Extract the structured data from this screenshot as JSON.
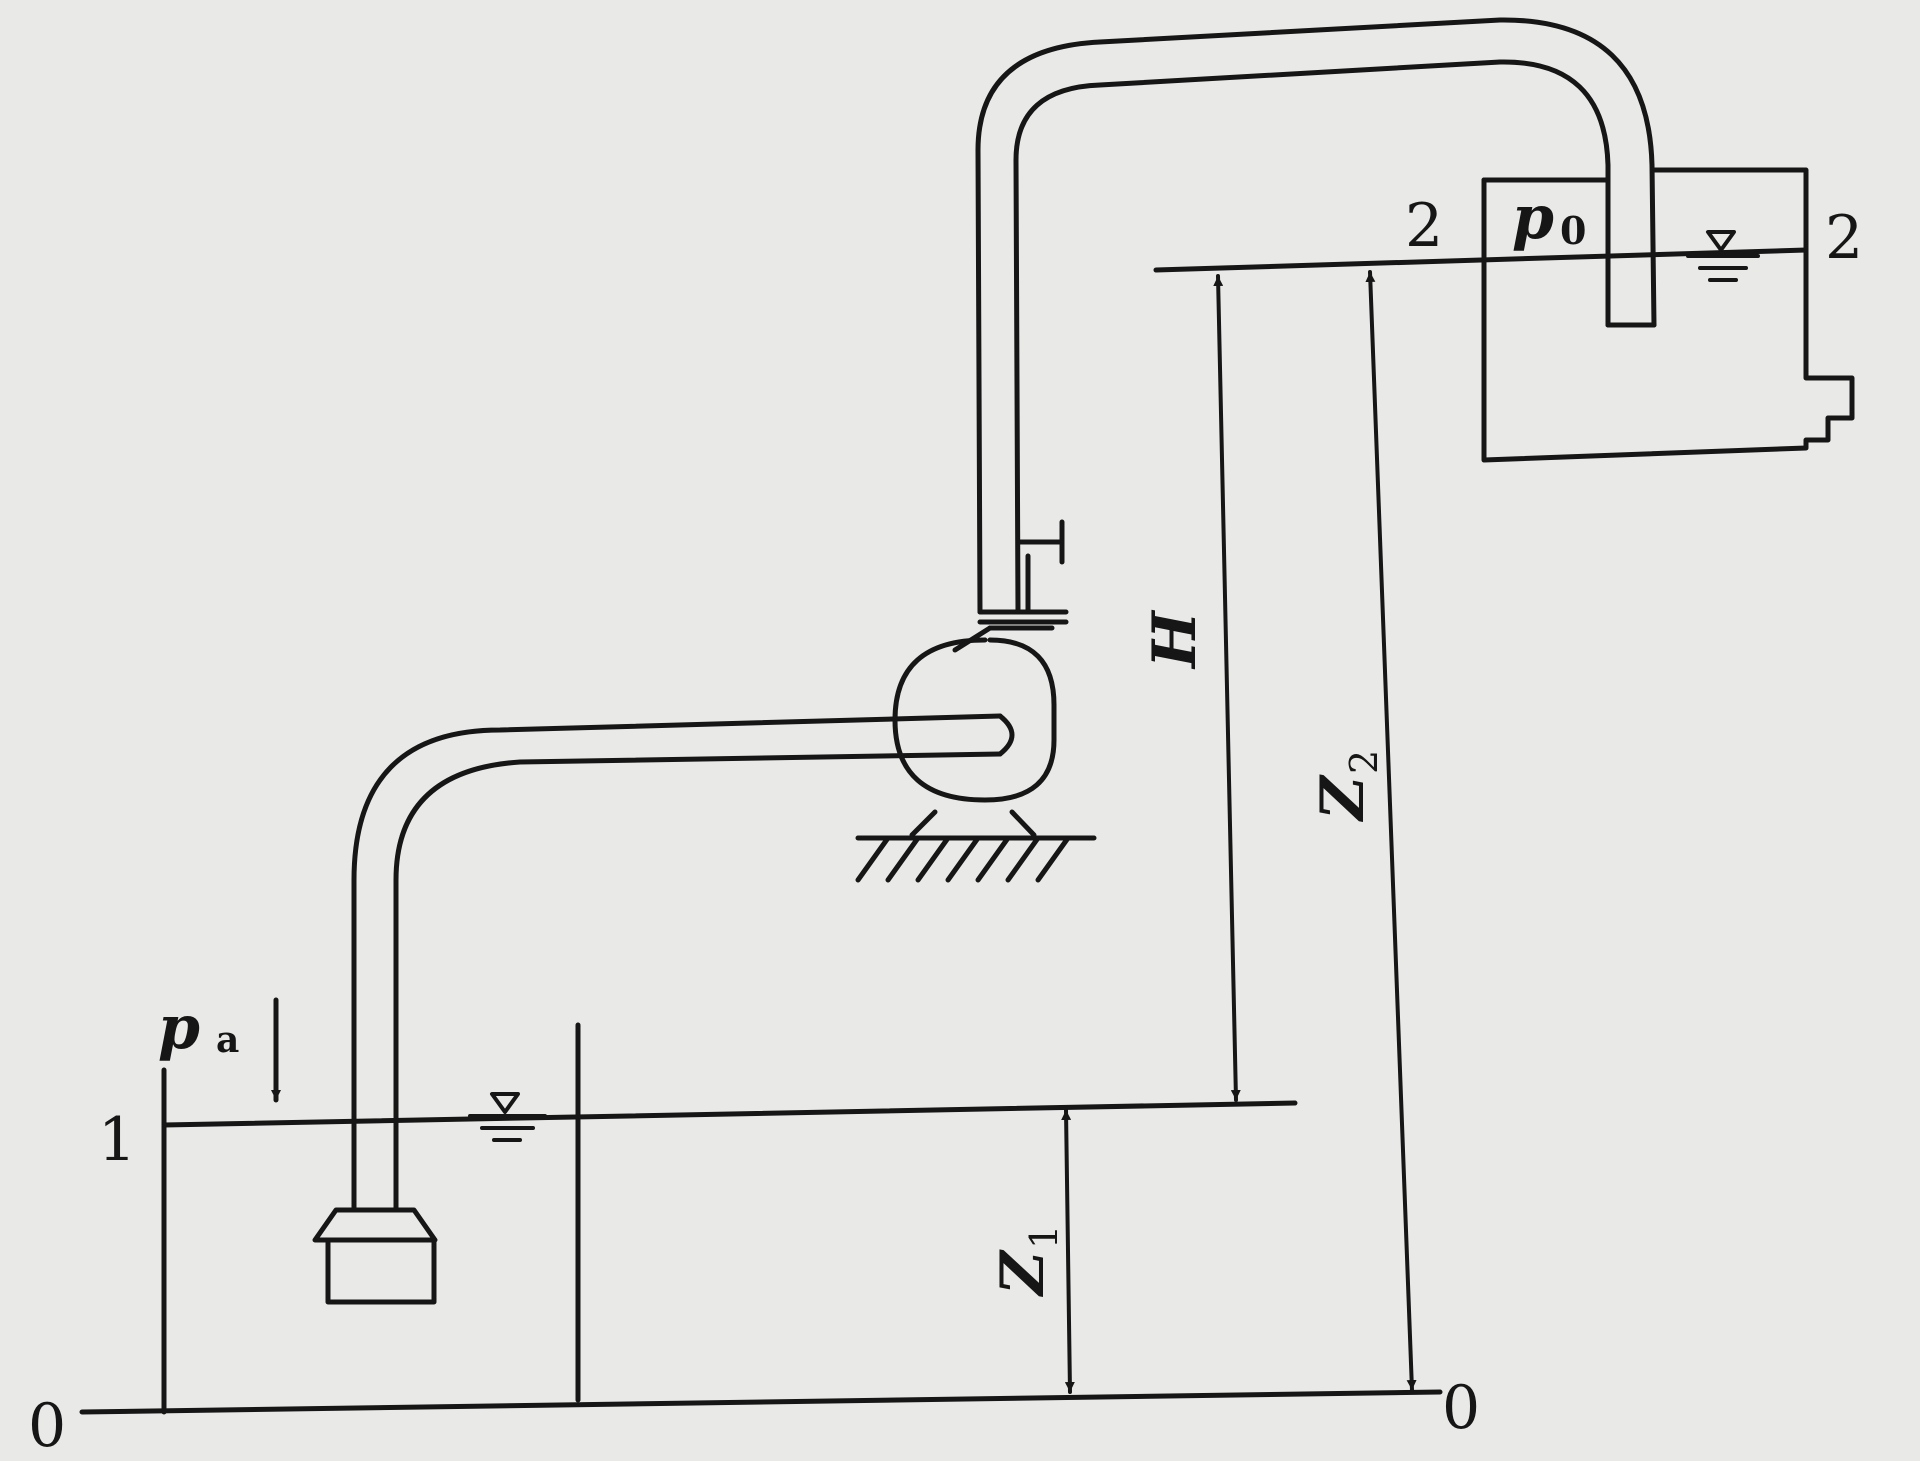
{
  "labels": {
    "section_1": "1",
    "section_2_left": "2",
    "section_2_right": "2",
    "datum_left": "0",
    "datum_right": "0",
    "pressure_atm_base": "p",
    "pressure_atm_sub": "a",
    "pressure_tank_base": "p",
    "pressure_tank_sub": "0",
    "head": "H",
    "z1_base": "Z",
    "z1_sub": "1",
    "z2_base": "Z",
    "z2_sub": "2"
  },
  "colors": {
    "ink": "#161616",
    "paper": "#e9e9e7"
  }
}
